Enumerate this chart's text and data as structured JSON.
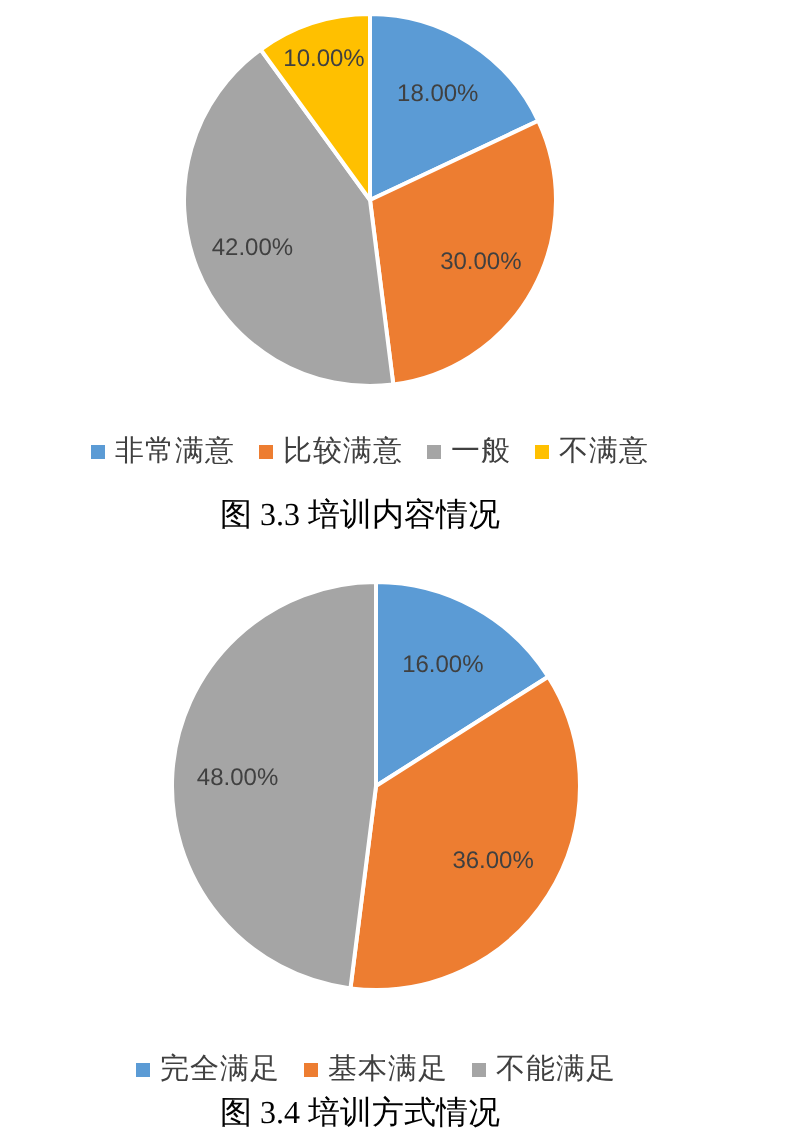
{
  "chart_data": [
    {
      "type": "pie",
      "title": "图 3.3 培训内容情况",
      "categories": [
        "非常满意",
        "比较满意",
        "一般",
        "不满意"
      ],
      "values": [
        18,
        30,
        42,
        10
      ],
      "colors": [
        "#5b9bd5",
        "#ed7d31",
        "#a5a5a5",
        "#ffc000"
      ],
      "value_labels": [
        "18.00%",
        "30.00%",
        "42.00%",
        "10.00%"
      ],
      "legend": "bottom"
    },
    {
      "type": "pie",
      "title": "图 3.4 培训方式情况",
      "categories": [
        "完全满足",
        "基本满足",
        "不能满足"
      ],
      "values": [
        16,
        36,
        48
      ],
      "colors": [
        "#5b9bd5",
        "#ed7d31",
        "#a5a5a5"
      ],
      "value_labels": [
        "16.00%",
        "36.00%",
        "48.00%"
      ],
      "legend": "bottom"
    }
  ]
}
